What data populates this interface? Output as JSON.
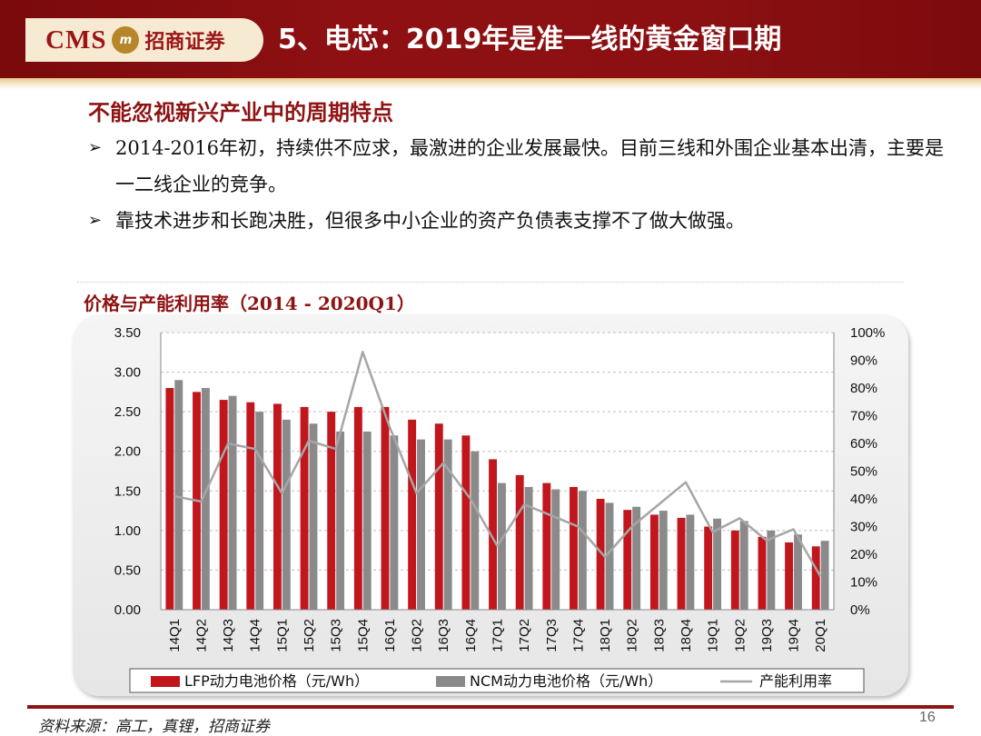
{
  "header": {
    "logo_text": "CMS",
    "logo_mark": "m",
    "logo_cn": "招商证券",
    "title": "5、电芯：2019年是准一线的黄金窗口期"
  },
  "content": {
    "subtitle": "不能忽视新兴产业中的周期特点",
    "bullets": [
      "2014-2016年初，持续供不应求，最激进的企业发展最快。目前三线和外围企业基本出清，主要是一二线企业的竞争。",
      "靠技术进步和长跑决胜，但很多中小企业的资产负债表支撑不了做大做强。"
    ]
  },
  "chart_data": {
    "type": "bar",
    "title": "价格与产能利用率（2014 - 2020Q1）",
    "categories": [
      "14Q1",
      "14Q2",
      "14Q3",
      "14Q4",
      "15Q1",
      "15Q2",
      "15Q3",
      "15Q4",
      "16Q1",
      "16Q2",
      "16Q3",
      "16Q4",
      "17Q1",
      "17Q2",
      "17Q3",
      "17Q4",
      "18Q1",
      "18Q2",
      "18Q3",
      "18Q4",
      "19Q1",
      "19Q2",
      "19Q3",
      "19Q4",
      "20Q1"
    ],
    "series": [
      {
        "name": "LFP动力电池价格（元/Wh）",
        "type": "bar",
        "axis": "left",
        "color": "#c0161c",
        "values": [
          2.8,
          2.75,
          2.65,
          2.62,
          2.6,
          2.56,
          2.5,
          2.56,
          2.56,
          2.4,
          2.35,
          2.2,
          1.9,
          1.7,
          1.6,
          1.55,
          1.4,
          1.26,
          1.2,
          1.16,
          1.05,
          1.0,
          0.92,
          0.85,
          0.8
        ]
      },
      {
        "name": "NCM动力电池价格（元/Wh）",
        "type": "bar",
        "axis": "left",
        "color": "#8a8a8a",
        "values": [
          2.9,
          2.8,
          2.7,
          2.5,
          2.4,
          2.35,
          2.25,
          2.25,
          2.2,
          2.15,
          2.15,
          2.0,
          1.6,
          1.55,
          1.52,
          1.5,
          1.35,
          1.3,
          1.25,
          1.2,
          1.15,
          1.12,
          1.0,
          0.95,
          0.87
        ]
      },
      {
        "name": "产能利用率",
        "type": "line",
        "axis": "right",
        "color": "#a6a6a6",
        "values": [
          0.41,
          0.39,
          0.6,
          0.58,
          0.42,
          0.61,
          0.58,
          0.93,
          0.66,
          0.42,
          0.53,
          0.4,
          0.23,
          0.38,
          0.34,
          0.3,
          0.19,
          0.3,
          0.38,
          0.46,
          0.28,
          0.33,
          0.25,
          0.29,
          0.12
        ]
      }
    ],
    "ylim_left": [
      0,
      3.5
    ],
    "yticks_left": [
      "0.00",
      "0.50",
      "1.00",
      "1.50",
      "2.00",
      "2.50",
      "3.00",
      "3.50"
    ],
    "ylim_right": [
      0,
      1.0
    ],
    "yticks_right": [
      "0%",
      "10%",
      "20%",
      "30%",
      "40%",
      "50%",
      "60%",
      "70%",
      "80%",
      "90%",
      "100%"
    ],
    "grid": true,
    "legend_position": "bottom"
  },
  "footer": {
    "source": "资料来源：高工，真锂，招商证券",
    "page": "16"
  }
}
